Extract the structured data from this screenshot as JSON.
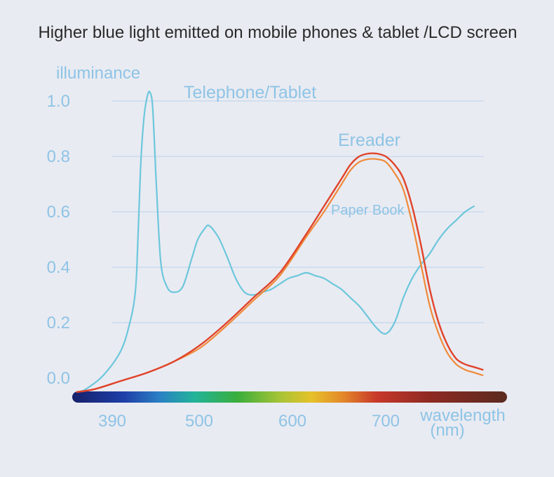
{
  "chart_data": {
    "type": "line",
    "title": "Higher blue light emitted on mobile phones & tablet /LCD screen",
    "ylabel": "illuminance",
    "xlabel": "wavelength",
    "xlabel_unit": "(nm)",
    "ylim": [
      0,
      1.0
    ],
    "y_ticks": [
      "0.0",
      "0.2",
      "0.4",
      "0.6",
      "0.8",
      "1.0"
    ],
    "x_ticks": [
      "390",
      "500",
      "600",
      "700"
    ],
    "xlim": [
      350,
      810
    ],
    "grid": true,
    "colors": {
      "telephone": "#6cc7dc",
      "ereader": "#e0432a",
      "paper_book": "#f08a3a",
      "grid": "#c9dbef"
    },
    "series": [
      {
        "name": "Telephone/Tablet",
        "x": [
          350,
          360,
          380,
          400,
          410,
          415,
          418,
          422,
          426,
          430,
          433,
          436,
          440,
          445,
          452,
          460,
          470,
          480,
          487,
          495,
          500,
          510,
          520,
          530,
          540,
          550,
          560,
          570,
          580,
          590,
          600,
          610,
          620,
          630,
          640,
          650,
          660,
          670,
          680,
          690,
          700,
          710,
          720,
          730,
          740,
          750,
          760,
          770,
          780,
          790,
          800
        ],
        "y": [
          -0.05,
          -0.04,
          0.01,
          0.1,
          0.2,
          0.28,
          0.4,
          0.75,
          0.94,
          1.02,
          1.03,
          0.97,
          0.7,
          0.42,
          0.33,
          0.31,
          0.33,
          0.43,
          0.5,
          0.54,
          0.55,
          0.51,
          0.44,
          0.36,
          0.31,
          0.3,
          0.31,
          0.32,
          0.34,
          0.36,
          0.37,
          0.38,
          0.37,
          0.36,
          0.34,
          0.32,
          0.29,
          0.26,
          0.22,
          0.18,
          0.16,
          0.2,
          0.29,
          0.36,
          0.41,
          0.45,
          0.5,
          0.54,
          0.57,
          0.6,
          0.62
        ]
      },
      {
        "name": "Ereader",
        "x": [
          350,
          370,
          400,
          430,
          460,
          490,
          520,
          550,
          580,
          610,
          630,
          650,
          660,
          670,
          680,
          690,
          700,
          710,
          720,
          730,
          740,
          750,
          760,
          770,
          780,
          790,
          800,
          810
        ],
        "y": [
          -0.05,
          -0.04,
          -0.01,
          0.02,
          0.06,
          0.12,
          0.2,
          0.29,
          0.38,
          0.52,
          0.62,
          0.72,
          0.77,
          0.8,
          0.81,
          0.81,
          0.8,
          0.77,
          0.72,
          0.62,
          0.48,
          0.32,
          0.2,
          0.12,
          0.07,
          0.05,
          0.04,
          0.03
        ]
      },
      {
        "name": "Paper Book",
        "x": [
          350,
          370,
          400,
          430,
          460,
          490,
          520,
          550,
          580,
          610,
          630,
          650,
          660,
          670,
          680,
          690,
          700,
          710,
          720,
          730,
          740,
          750,
          760,
          770,
          780,
          790,
          800,
          810
        ],
        "y": [
          -0.05,
          -0.04,
          -0.01,
          0.02,
          0.06,
          0.11,
          0.19,
          0.28,
          0.37,
          0.51,
          0.6,
          0.7,
          0.75,
          0.78,
          0.79,
          0.79,
          0.78,
          0.74,
          0.68,
          0.56,
          0.41,
          0.26,
          0.16,
          0.09,
          0.05,
          0.03,
          0.02,
          0.01
        ]
      }
    ]
  }
}
